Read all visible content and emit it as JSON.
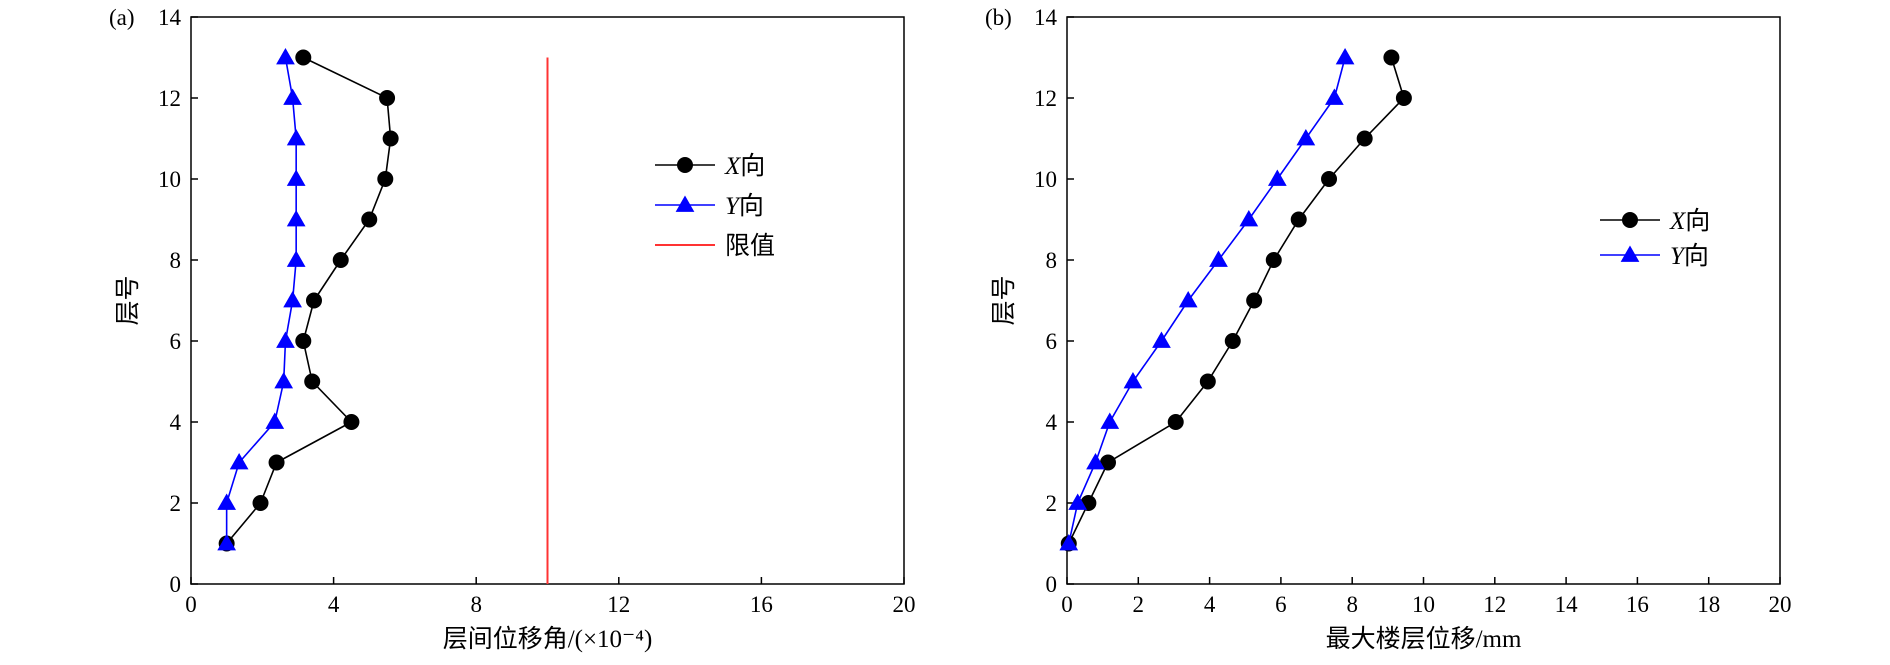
{
  "chart_data": [
    {
      "type": "line",
      "panel_label": "(a)",
      "xlabel": "层间位移角/(×10⁻⁴)",
      "ylabel": "层号",
      "xlim": [
        0,
        20
      ],
      "ylim": [
        0,
        14
      ],
      "xticks": [
        0,
        4,
        8,
        12,
        16,
        20
      ],
      "yticks": [
        0,
        2,
        4,
        6,
        8,
        10,
        12,
        14
      ],
      "legend_position": "upper-middle",
      "series": [
        {
          "name": "X向",
          "color": "#000000",
          "marker": "circle",
          "points": [
            [
              1.0,
              1
            ],
            [
              1.95,
              2
            ],
            [
              2.4,
              3
            ],
            [
              4.5,
              4
            ],
            [
              3.4,
              5
            ],
            [
              3.15,
              6
            ],
            [
              3.45,
              7
            ],
            [
              4.2,
              8
            ],
            [
              5.0,
              9
            ],
            [
              5.45,
              10
            ],
            [
              5.6,
              11
            ],
            [
              5.5,
              12
            ],
            [
              3.15,
              13
            ]
          ]
        },
        {
          "name": "Y向",
          "color": "#0000ff",
          "marker": "triangle",
          "points": [
            [
              1.0,
              1
            ],
            [
              1.0,
              2
            ],
            [
              1.35,
              3
            ],
            [
              2.35,
              4
            ],
            [
              2.6,
              5
            ],
            [
              2.65,
              6
            ],
            [
              2.85,
              7
            ],
            [
              2.95,
              8
            ],
            [
              2.95,
              9
            ],
            [
              2.95,
              10
            ],
            [
              2.95,
              11
            ],
            [
              2.85,
              12
            ],
            [
              2.65,
              13
            ]
          ]
        },
        {
          "name": "限值",
          "color": "#ff3333",
          "marker": "none",
          "points": [
            [
              10,
              0
            ],
            [
              10,
              13
            ]
          ]
        }
      ]
    },
    {
      "type": "line",
      "panel_label": "(b)",
      "xlabel": "最大楼层位移/mm",
      "ylabel": "层号",
      "xlim": [
        0,
        20
      ],
      "ylim": [
        0,
        14
      ],
      "xticks": [
        0,
        2,
        4,
        6,
        8,
        10,
        12,
        14,
        16,
        18,
        20
      ],
      "yticks": [
        0,
        2,
        4,
        6,
        8,
        10,
        12,
        14
      ],
      "legend_position": "center-right",
      "series": [
        {
          "name": "X向",
          "color": "#000000",
          "marker": "circle",
          "points": [
            [
              0.05,
              1
            ],
            [
              0.6,
              2
            ],
            [
              1.15,
              3
            ],
            [
              3.05,
              4
            ],
            [
              3.95,
              5
            ],
            [
              4.65,
              6
            ],
            [
              5.25,
              7
            ],
            [
              5.8,
              8
            ],
            [
              6.5,
              9
            ],
            [
              7.35,
              10
            ],
            [
              8.35,
              11
            ],
            [
              9.45,
              12
            ],
            [
              9.1,
              13
            ]
          ]
        },
        {
          "name": "Y向",
          "color": "#0000ff",
          "marker": "triangle",
          "points": [
            [
              0.05,
              1
            ],
            [
              0.3,
              2
            ],
            [
              0.8,
              3
            ],
            [
              1.2,
              4
            ],
            [
              1.85,
              5
            ],
            [
              2.65,
              6
            ],
            [
              3.4,
              7
            ],
            [
              4.25,
              8
            ],
            [
              5.1,
              9
            ],
            [
              5.9,
              10
            ],
            [
              6.7,
              11
            ],
            [
              7.5,
              12
            ],
            [
              7.8,
              13
            ]
          ]
        }
      ]
    }
  ]
}
